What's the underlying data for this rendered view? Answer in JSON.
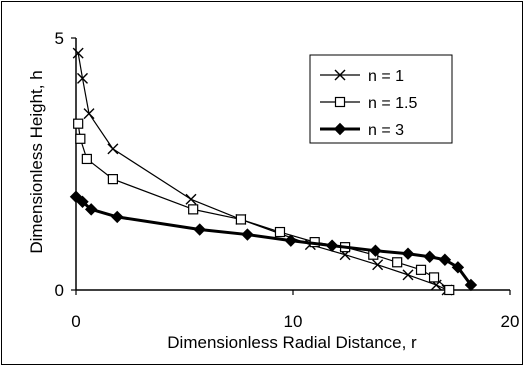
{
  "chart_data": {
    "type": "line",
    "xlabel": "Dimensionless Radial Distance, r",
    "ylabel": "Dimensionless Height, h",
    "xlim": [
      0,
      20
    ],
    "ylim": [
      0,
      5
    ],
    "xticks": [
      "0",
      "10",
      "20"
    ],
    "yticks": [
      "0",
      "5"
    ],
    "grid": false,
    "legend_placement": "top-right",
    "series": [
      {
        "name": "n = 1",
        "marker": "x",
        "color": "#000000",
        "x": [
          0.1,
          0.3,
          0.6,
          1.7,
          5.3,
          7.6,
          10.8,
          12.4,
          13.9,
          15.3,
          16.6,
          17.1
        ],
        "y": [
          4.7,
          4.2,
          3.5,
          2.8,
          1.8,
          1.4,
          0.9,
          0.7,
          0.5,
          0.3,
          0.1,
          0.0
        ]
      },
      {
        "name": "n = 1.5",
        "marker": "square",
        "color": "#000000",
        "x": [
          0.1,
          0.2,
          0.5,
          1.7,
          5.4,
          7.6,
          9.4,
          11.0,
          12.4,
          13.7,
          14.8,
          15.9,
          16.5,
          17.2
        ],
        "y": [
          3.3,
          3.0,
          2.6,
          2.2,
          1.6,
          1.4,
          1.15,
          0.95,
          0.85,
          0.7,
          0.55,
          0.4,
          0.25,
          0.0
        ]
      },
      {
        "name": "n = 3",
        "marker": "diamond",
        "color": "#000000",
        "x": [
          0.0,
          0.3,
          0.7,
          1.9,
          5.7,
          7.9,
          9.9,
          11.8,
          13.8,
          15.3,
          16.3,
          17.0,
          17.6,
          18.2
        ],
        "y": [
          1.85,
          1.75,
          1.6,
          1.45,
          1.2,
          1.1,
          0.98,
          0.88,
          0.78,
          0.72,
          0.66,
          0.6,
          0.45,
          0.1
        ]
      }
    ]
  }
}
